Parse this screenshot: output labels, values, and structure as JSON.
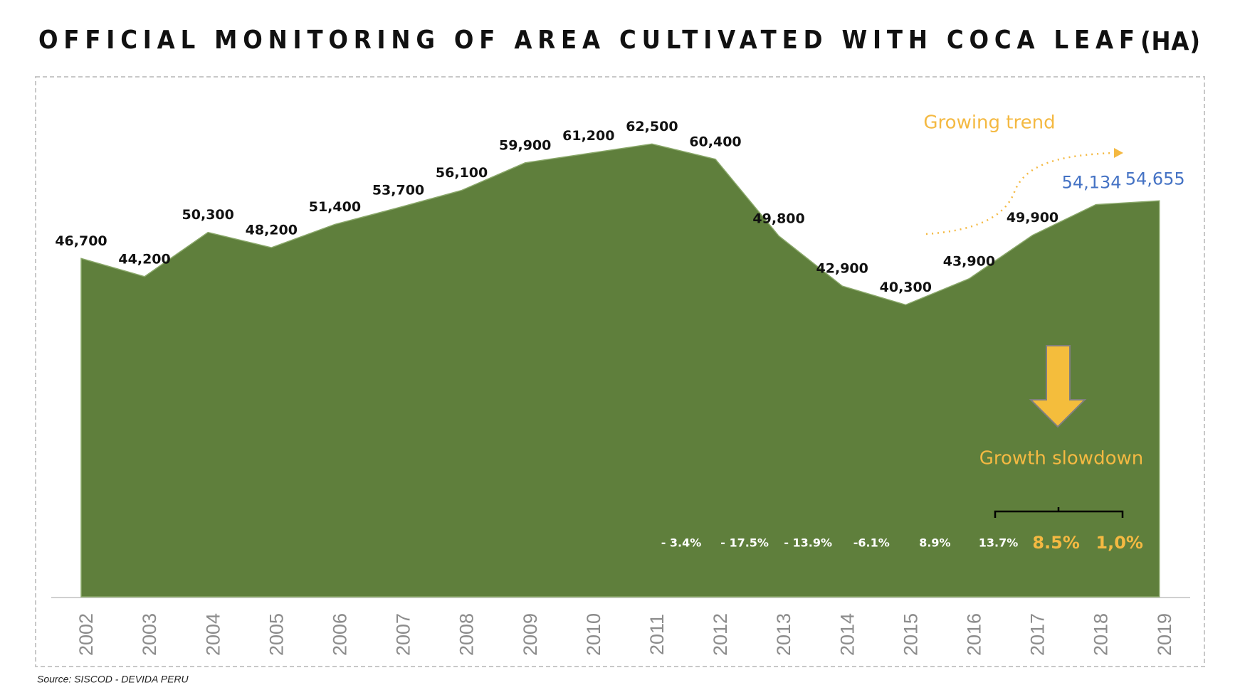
{
  "chart_data": {
    "type": "area",
    "title": "OFFICIAL MONITORING OF AREA CULTIVATED WITH COCA LEAF",
    "unit": "(HA)",
    "categories": [
      "2002",
      "2003",
      "2004",
      "2005",
      "2006",
      "2007",
      "2008",
      "2009",
      "2010",
      "2011",
      "2012",
      "2013",
      "2014",
      "2015",
      "2016",
      "2017",
      "2018",
      "2019"
    ],
    "values": [
      46700,
      44200,
      50300,
      48200,
      51400,
      53700,
      56100,
      59900,
      61200,
      62500,
      60400,
      49800,
      42900,
      40300,
      43900,
      49900,
      54134,
      54655
    ],
    "value_labels": [
      "46,700",
      "44,200",
      "50,300",
      "48,200",
      "51,400",
      "53,700",
      "56,100",
      "59,900",
      "61,200",
      "62,500",
      "60,400",
      "49,800",
      "42,900",
      "40,300",
      "43,900",
      "49,900",
      "54,134",
      "54,655"
    ],
    "color": "#5f7f3c",
    "ylim": [
      0,
      70000
    ],
    "change_labels": [
      null,
      null,
      null,
      null,
      null,
      null,
      null,
      null,
      null,
      null,
      "- 3.4%",
      "- 17.5%",
      "- 13.9%",
      "-6.1%",
      "8.9%",
      "13.7%",
      "8.5%",
      "1,0%"
    ],
    "annotations": [
      "Growing trend",
      "Growth slowdown"
    ],
    "source": "Source: SISCOD - DEVIDA PERU"
  }
}
